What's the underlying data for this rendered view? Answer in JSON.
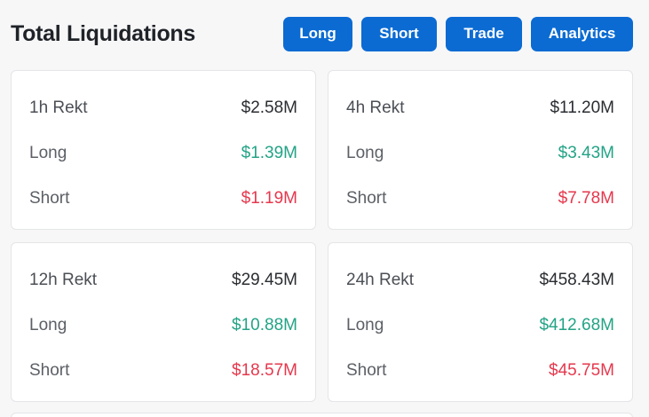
{
  "header": {
    "title": "Total Liquidations",
    "buttons": {
      "long": "Long",
      "short": "Short",
      "trade": "Trade",
      "analytics": "Analytics"
    }
  },
  "cards": [
    {
      "label": "1h Rekt",
      "total": "$2.58M",
      "long_label": "Long",
      "long": "$1.39M",
      "short_label": "Short",
      "short": "$1.19M"
    },
    {
      "label": "4h Rekt",
      "total": "$11.20M",
      "long_label": "Long",
      "long": "$3.43M",
      "short_label": "Short",
      "short": "$7.78M"
    },
    {
      "label": "12h Rekt",
      "total": "$29.45M",
      "long_label": "Long",
      "long": "$10.88M",
      "short_label": "Short",
      "short": "$18.57M"
    },
    {
      "label": "24h Rekt",
      "total": "$458.43M",
      "long_label": "Long",
      "long": "$412.68M",
      "short_label": "Short",
      "short": "$45.75M"
    }
  ],
  "colors": {
    "accent": "#0b6bd3",
    "long": "#23a386",
    "short": "#e5384d"
  }
}
